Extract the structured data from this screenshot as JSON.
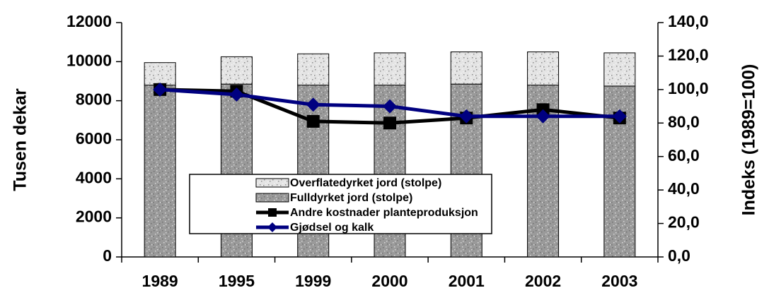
{
  "chart_data": {
    "type": "bar",
    "categories": [
      "1989",
      "1995",
      "1999",
      "2000",
      "2001",
      "2002",
      "2003"
    ],
    "series": [
      {
        "name": "Overflatedyrket jord (stolpe)",
        "type": "bar",
        "color": "#e4e4e4",
        "values": [
          1150,
          1400,
          1600,
          1650,
          1650,
          1700,
          1700
        ]
      },
      {
        "name": "Fulldyrket jord (stolpe)",
        "type": "bar",
        "color": "#9a9a9a",
        "values": [
          8800,
          8850,
          8800,
          8800,
          8850,
          8800,
          8750
        ]
      },
      {
        "name": "Andre kostnader planteproduksjon",
        "type": "line",
        "axis": "y2",
        "marker": "square",
        "color": "#000000",
        "values": [
          100,
          99,
          81,
          80,
          83,
          88,
          83
        ]
      },
      {
        "name": "Gjødsel og kalk",
        "type": "line",
        "axis": "y2",
        "marker": "diamond",
        "color": "#000080",
        "values": [
          100,
          97,
          91,
          90,
          84,
          84,
          84
        ]
      }
    ],
    "ylabel": "Tusen dekar",
    "y2label": "Indeks (1989=100)",
    "ylim": [
      0,
      12000
    ],
    "yticks": [
      0,
      2000,
      4000,
      6000,
      8000,
      10000,
      12000
    ],
    "y2lim": [
      0,
      140
    ],
    "y2ticks": [
      {
        "value": 0,
        "label": "0,0"
      },
      {
        "value": 20,
        "label": "20,0"
      },
      {
        "value": 40,
        "label": "40,0"
      },
      {
        "value": 60,
        "label": "60,0"
      },
      {
        "value": 80,
        "label": "80,0"
      },
      {
        "value": 100,
        "label": "100,0"
      },
      {
        "value": 120,
        "label": "120,0"
      },
      {
        "value": 140,
        "label": "140,0"
      }
    ],
    "legend": "center"
  }
}
